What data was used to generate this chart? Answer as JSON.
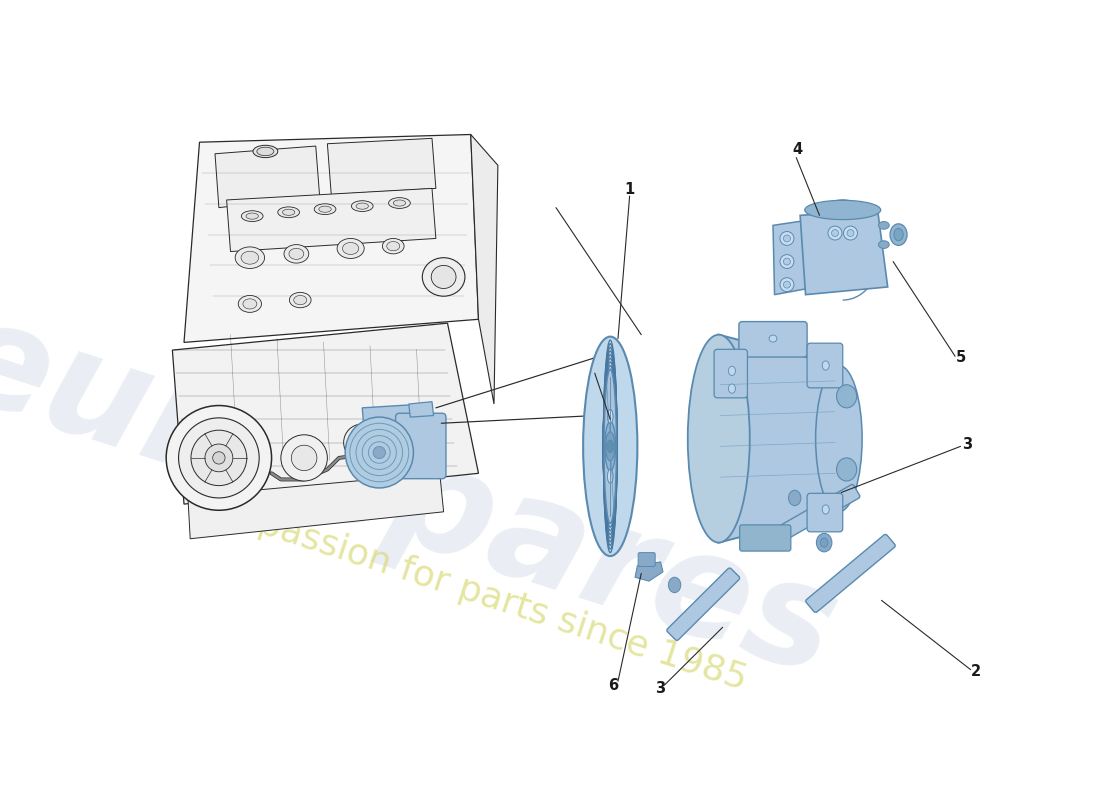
{
  "bg_color": "#ffffff",
  "lc": "#2a2a2a",
  "lc_thin": "#444444",
  "cf": "#adc8e0",
  "ce": "#5a8ab0",
  "cd": "#6a9ac0",
  "ef": "#f8f8f8",
  "ee": "#303030",
  "wm1_text": "eurospares",
  "wm2_text": "a passion for parts since 1985",
  "wm1_color": "#c8d4e4",
  "wm2_color": "#d8d870",
  "wm1_alpha": 0.38,
  "wm2_alpha": 0.65,
  "label_fs": 10.5
}
